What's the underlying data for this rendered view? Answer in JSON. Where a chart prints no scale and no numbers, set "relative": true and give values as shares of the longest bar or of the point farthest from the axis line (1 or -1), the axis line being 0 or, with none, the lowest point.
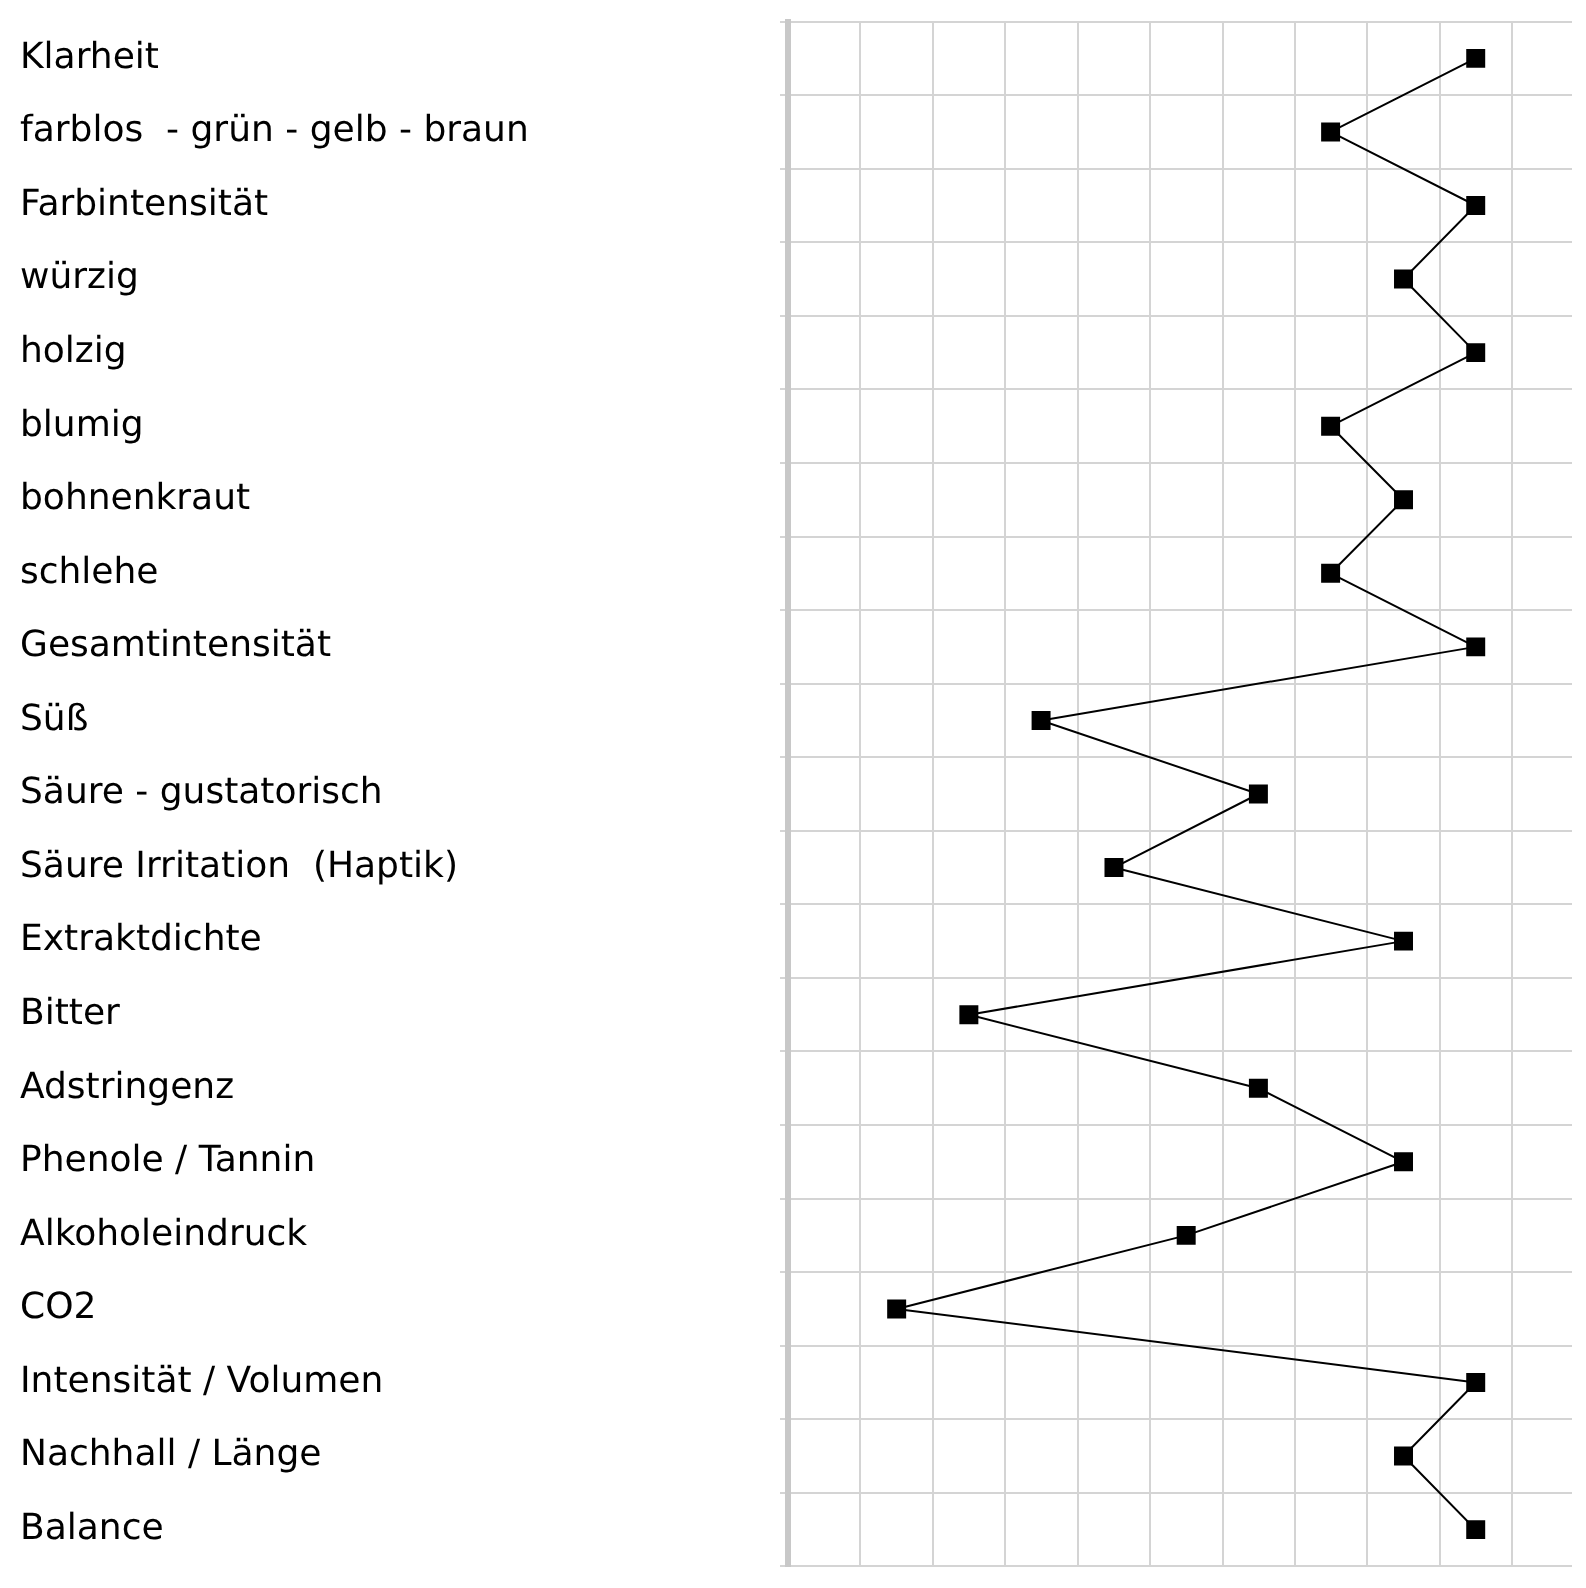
{
  "chart_data": {
    "type": "line",
    "orientation": "horizontal",
    "relative": true,
    "grid": true,
    "marker": "square",
    "color": "#000000",
    "categories": [
      "Klarheit",
      "farblos  - grün - gelb - braun",
      "Farbintensität",
      "würzig",
      "holzig",
      "blumig",
      "bohnenkraut",
      "schlehe",
      "Gesamtintensität",
      "Süß",
      "Säure - gustatorisch",
      "Säure Irritation  (Haptik)",
      "Extraktdichte",
      "Bitter",
      "Adstringenz",
      "Phenole / Tannin",
      "Alkoholeindruck",
      "CO2",
      "Intensität / Volumen",
      "Nachhall / Länge",
      "Balance"
    ],
    "values": [
      1,
      0.789,
      1,
      0.895,
      1,
      0.789,
      0.895,
      0.789,
      1,
      0.368,
      0.684,
      0.474,
      0.895,
      0.263,
      0.684,
      0.895,
      0.579,
      0.158,
      1,
      0.895,
      1
    ]
  }
}
